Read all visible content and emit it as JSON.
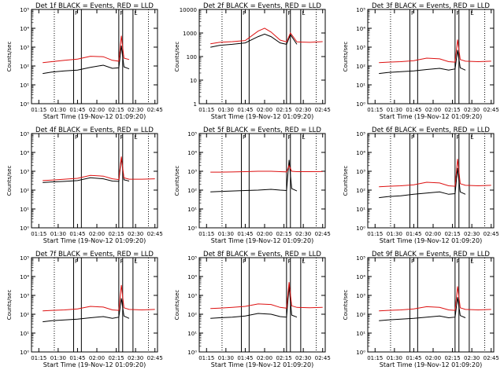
{
  "colors": {
    "events": "#000000",
    "lld": "#dd1111",
    "background": "#ffffff"
  },
  "shared": {
    "xlabel": "Start Time (19-Nov-12 01:09:20)",
    "ylabel": "Counts/sec",
    "x_ticks": [
      "01:15",
      "01:30",
      "01:45",
      "02:00",
      "02:15",
      "02:30",
      "02:45"
    ],
    "xlim": [
      "01:09:20",
      "02:47:00"
    ],
    "y_scale": "log",
    "marker_lines": {
      "dotted": [
        "01:27",
        "02:40"
      ],
      "solid": [
        "01:42",
        "01:48",
        "02:17",
        "02:20",
        "02:28"
      ],
      "flag_labels": [
        "F",
        "F",
        "L"
      ]
    }
  },
  "chart_data": [
    {
      "type": "line",
      "title": "Det 1f  BLACK = Events, RED = LLD",
      "ylim": [
        1,
        100000
      ],
      "y_ticks": [
        "10⁰",
        "10¹",
        "10²",
        "10³",
        "10⁴",
        "10⁵"
      ],
      "series": [
        {
          "name": "Events",
          "color": "#000000",
          "x": [
            "01:18",
            "01:25",
            "01:35",
            "01:45",
            "01:55",
            "02:05",
            "02:12",
            "02:17",
            "02:19",
            "02:21",
            "02:25"
          ],
          "y": [
            40,
            48,
            55,
            60,
            85,
            110,
            75,
            80,
            1200,
            90,
            70
          ]
        },
        {
          "name": "LLD",
          "color": "#dd1111",
          "x": [
            "01:18",
            "01:25",
            "01:35",
            "01:45",
            "01:55",
            "02:05",
            "02:12",
            "02:17",
            "02:19",
            "02:21",
            "02:25"
          ],
          "y": [
            150,
            170,
            200,
            230,
            330,
            310,
            200,
            180,
            4000,
            260,
            220
          ]
        }
      ]
    },
    {
      "type": "line",
      "title": "Det 2f  BLACK = Events, RED = LLD",
      "ylim": [
        1,
        10000
      ],
      "y_ticks": [
        "1",
        "10",
        "100",
        "1000",
        "10000"
      ],
      "series": [
        {
          "name": "Events",
          "color": "#000000",
          "x": [
            "01:18",
            "01:25",
            "01:35",
            "01:45",
            "01:55",
            "02:00",
            "02:05",
            "02:12",
            "02:17",
            "02:20",
            "02:25"
          ],
          "y": [
            250,
            300,
            330,
            380,
            700,
            900,
            700,
            380,
            330,
            850,
            330
          ]
        },
        {
          "name": "LLD",
          "color": "#dd1111",
          "x": [
            "01:18",
            "01:25",
            "01:35",
            "01:45",
            "01:55",
            "02:00",
            "02:05",
            "02:12",
            "02:17",
            "02:20",
            "02:25",
            "02:35",
            "02:45"
          ],
          "y": [
            350,
            400,
            430,
            480,
            1200,
            1600,
            1100,
            500,
            420,
            1000,
            420,
            400,
            430
          ]
        }
      ]
    },
    {
      "type": "line",
      "title": "Det 3f  BLACK = Events, RED = LLD",
      "ylim": [
        1,
        100000
      ],
      "y_ticks": [
        "10⁰",
        "10¹",
        "10²",
        "10³",
        "10⁴",
        "10⁵"
      ],
      "series": [
        {
          "name": "Events",
          "color": "#000000",
          "x": [
            "01:18",
            "01:25",
            "01:35",
            "01:45",
            "01:55",
            "02:05",
            "02:12",
            "02:17",
            "02:19",
            "02:21",
            "02:25"
          ],
          "y": [
            40,
            45,
            50,
            55,
            65,
            75,
            60,
            70,
            700,
            80,
            60
          ]
        },
        {
          "name": "LLD",
          "color": "#dd1111",
          "x": [
            "01:18",
            "01:25",
            "01:35",
            "01:45",
            "01:55",
            "02:05",
            "02:12",
            "02:17",
            "02:19",
            "02:21",
            "02:25",
            "02:35",
            "02:45"
          ],
          "y": [
            150,
            160,
            170,
            190,
            260,
            240,
            170,
            160,
            2500,
            220,
            180,
            170,
            180
          ]
        }
      ]
    },
    {
      "type": "line",
      "title": "Det 4f  BLACK = Events, RED = LLD",
      "ylim": [
        1,
        100000
      ],
      "y_ticks": [
        "10⁰",
        "10¹",
        "10²",
        "10³",
        "10⁴",
        "10⁵"
      ],
      "series": [
        {
          "name": "Events",
          "color": "#000000",
          "x": [
            "01:18",
            "01:25",
            "01:35",
            "01:45",
            "01:55",
            "02:05",
            "02:12",
            "02:17",
            "02:19",
            "02:21",
            "02:25"
          ],
          "y": [
            250,
            270,
            290,
            320,
            450,
            400,
            300,
            290,
            5000,
            350,
            300
          ]
        },
        {
          "name": "LLD",
          "color": "#dd1111",
          "x": [
            "01:18",
            "01:25",
            "01:35",
            "01:45",
            "01:55",
            "02:05",
            "02:12",
            "02:17",
            "02:19",
            "02:21",
            "02:25",
            "02:35",
            "02:45"
          ],
          "y": [
            320,
            340,
            380,
            420,
            600,
            550,
            400,
            360,
            6000,
            450,
            380,
            380,
            400
          ]
        }
      ]
    },
    {
      "type": "line",
      "title": "Det 5f  BLACK = Events, RED = LLD",
      "ylim": [
        1,
        100000
      ],
      "y_ticks": [
        "10⁰",
        "10¹",
        "10²",
        "10³",
        "10⁴",
        "10⁵"
      ],
      "series": [
        {
          "name": "Events",
          "color": "#000000",
          "x": [
            "01:18",
            "01:25",
            "01:35",
            "01:45",
            "01:55",
            "02:05",
            "02:12",
            "02:17",
            "02:19",
            "02:21",
            "02:25"
          ],
          "y": [
            80,
            85,
            90,
            95,
            100,
            110,
            100,
            95,
            4000,
            120,
            90
          ]
        },
        {
          "name": "LLD",
          "color": "#dd1111",
          "x": [
            "01:18",
            "01:25",
            "01:35",
            "01:45",
            "01:55",
            "02:05",
            "02:12",
            "02:17",
            "02:19",
            "02:21",
            "02:25",
            "02:35",
            "02:45"
          ],
          "y": [
            900,
            900,
            920,
            950,
            1000,
            1000,
            950,
            930,
            2000,
            1000,
            950,
            950,
            960
          ]
        }
      ]
    },
    {
      "type": "line",
      "title": "Det 6f  BLACK = Events, RED = LLD",
      "ylim": [
        1,
        100000
      ],
      "y_ticks": [
        "10⁰",
        "10¹",
        "10²",
        "10³",
        "10⁴",
        "10⁵"
      ],
      "series": [
        {
          "name": "Events",
          "color": "#000000",
          "x": [
            "01:18",
            "01:25",
            "01:35",
            "01:45",
            "01:55",
            "02:05",
            "02:12",
            "02:17",
            "02:19",
            "02:21",
            "02:25"
          ],
          "y": [
            40,
            45,
            50,
            60,
            70,
            80,
            60,
            65,
            1500,
            80,
            60
          ]
        },
        {
          "name": "LLD",
          "color": "#dd1111",
          "x": [
            "01:18",
            "01:25",
            "01:35",
            "01:45",
            "01:55",
            "02:05",
            "02:12",
            "02:17",
            "02:19",
            "02:21",
            "02:25",
            "02:35",
            "02:45"
          ],
          "y": [
            150,
            160,
            170,
            190,
            260,
            240,
            170,
            160,
            4500,
            220,
            180,
            170,
            180
          ]
        }
      ]
    },
    {
      "type": "line",
      "title": "Det 7f  BLACK = Events, RED = LLD",
      "ylim": [
        1,
        100000
      ],
      "y_ticks": [
        "10⁰",
        "10¹",
        "10²",
        "10³",
        "10⁴",
        "10⁵"
      ],
      "series": [
        {
          "name": "Events",
          "color": "#000000",
          "x": [
            "01:18",
            "01:25",
            "01:35",
            "01:45",
            "01:55",
            "02:05",
            "02:12",
            "02:17",
            "02:19",
            "02:21",
            "02:25"
          ],
          "y": [
            40,
            45,
            50,
            55,
            65,
            75,
            60,
            70,
            700,
            80,
            60
          ]
        },
        {
          "name": "LLD",
          "color": "#dd1111",
          "x": [
            "01:18",
            "01:25",
            "01:35",
            "01:45",
            "01:55",
            "02:05",
            "02:12",
            "02:17",
            "02:19",
            "02:21",
            "02:25",
            "02:35",
            "02:45"
          ],
          "y": [
            150,
            160,
            170,
            190,
            260,
            240,
            170,
            160,
            3500,
            220,
            180,
            170,
            180
          ]
        }
      ]
    },
    {
      "type": "line",
      "title": "Det 8f  BLACK = Events, RED = LLD",
      "ylim": [
        1,
        100000
      ],
      "y_ticks": [
        "10⁰",
        "10¹",
        "10²",
        "10³",
        "10⁴",
        "10⁵"
      ],
      "series": [
        {
          "name": "Events",
          "color": "#000000",
          "x": [
            "01:18",
            "01:25",
            "01:35",
            "01:45",
            "01:55",
            "02:05",
            "02:12",
            "02:17",
            "02:19",
            "02:21",
            "02:25"
          ],
          "y": [
            60,
            65,
            70,
            80,
            110,
            100,
            75,
            70,
            3000,
            90,
            70
          ]
        },
        {
          "name": "LLD",
          "color": "#dd1111",
          "x": [
            "01:18",
            "01:25",
            "01:35",
            "01:45",
            "01:55",
            "02:05",
            "02:12",
            "02:17",
            "02:19",
            "02:21",
            "02:25",
            "02:35",
            "02:45"
          ],
          "y": [
            200,
            210,
            230,
            260,
            350,
            330,
            230,
            210,
            5000,
            280,
            230,
            220,
            230
          ]
        }
      ]
    },
    {
      "type": "line",
      "title": "Det 9f  BLACK = Events, RED = LLD",
      "ylim": [
        1,
        100000
      ],
      "y_ticks": [
        "10⁰",
        "10¹",
        "10²",
        "10³",
        "10⁴",
        "10⁵"
      ],
      "series": [
        {
          "name": "Events",
          "color": "#000000",
          "x": [
            "01:18",
            "01:25",
            "01:35",
            "01:45",
            "01:55",
            "02:05",
            "02:12",
            "02:17",
            "02:19",
            "02:21",
            "02:25"
          ],
          "y": [
            45,
            50,
            55,
            60,
            70,
            80,
            65,
            70,
            800,
            85,
            65
          ]
        },
        {
          "name": "LLD",
          "color": "#dd1111",
          "x": [
            "01:18",
            "01:25",
            "01:35",
            "01:45",
            "01:55",
            "02:05",
            "02:12",
            "02:17",
            "02:19",
            "02:21",
            "02:25",
            "02:35",
            "02:45"
          ],
          "y": [
            150,
            160,
            170,
            190,
            250,
            230,
            170,
            160,
            3000,
            220,
            180,
            170,
            180
          ]
        }
      ]
    }
  ]
}
